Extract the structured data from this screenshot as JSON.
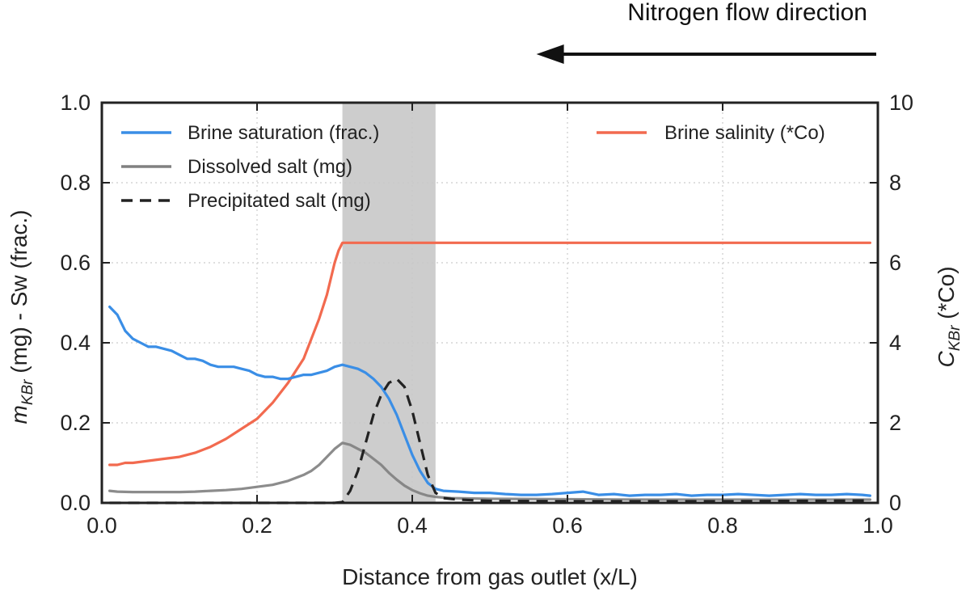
{
  "chart_data": {
    "type": "line",
    "xlabel": "Distance from gas outlet (x/L)",
    "ylabel_left": "m_KBr (mg) - Sw (frac.)",
    "ylabel_left_parts": {
      "symbol": "m",
      "subscript": "KBr",
      "rest": " (mg) - Sw (frac.)"
    },
    "ylabel_right": "C_KBr (*Co)",
    "ylabel_right_parts": {
      "symbol": "C",
      "subscript": "KBr",
      "rest": " (*Co)"
    },
    "xlim": [
      0.0,
      1.0
    ],
    "ylim_left": [
      0.0,
      1.0
    ],
    "ylim_right": [
      0,
      10
    ],
    "x_ticks": [
      "0.0",
      "0.2",
      "0.4",
      "0.6",
      "0.8",
      "1.0"
    ],
    "y_left_ticks": [
      "0.0",
      "0.2",
      "0.4",
      "0.6",
      "0.8",
      "1.0"
    ],
    "y_right_ticks": [
      "0",
      "2",
      "4",
      "6",
      "8",
      "10"
    ],
    "grid": true,
    "shaded_region": {
      "x_start": 0.31,
      "x_end": 0.43,
      "color": "#c8c8c8"
    },
    "annotation": {
      "text": "Nitrogen flow direction",
      "arrow_from_x": 1.0,
      "arrow_to_x": 0.56,
      "arrow_direction": "left"
    },
    "legend_left_position": "upper-left",
    "legend_right_position": "upper-right",
    "series": [
      {
        "name": "Brine saturation (frac.)",
        "axis": "left",
        "color": "#3a8ee6",
        "style": "solid",
        "x": [
          0.01,
          0.02,
          0.03,
          0.04,
          0.05,
          0.06,
          0.07,
          0.08,
          0.09,
          0.1,
          0.11,
          0.12,
          0.13,
          0.14,
          0.15,
          0.16,
          0.17,
          0.18,
          0.19,
          0.2,
          0.21,
          0.22,
          0.23,
          0.24,
          0.25,
          0.26,
          0.27,
          0.28,
          0.29,
          0.3,
          0.31,
          0.32,
          0.33,
          0.34,
          0.35,
          0.36,
          0.37,
          0.38,
          0.39,
          0.4,
          0.41,
          0.42,
          0.43,
          0.44,
          0.46,
          0.48,
          0.5,
          0.52,
          0.54,
          0.56,
          0.58,
          0.6,
          0.62,
          0.64,
          0.66,
          0.68,
          0.7,
          0.72,
          0.74,
          0.76,
          0.78,
          0.8,
          0.82,
          0.84,
          0.86,
          0.88,
          0.9,
          0.92,
          0.94,
          0.96,
          0.98,
          0.99
        ],
        "y": [
          0.49,
          0.47,
          0.43,
          0.41,
          0.4,
          0.39,
          0.39,
          0.385,
          0.38,
          0.37,
          0.36,
          0.36,
          0.355,
          0.345,
          0.34,
          0.34,
          0.34,
          0.335,
          0.33,
          0.32,
          0.315,
          0.315,
          0.31,
          0.31,
          0.315,
          0.32,
          0.32,
          0.325,
          0.33,
          0.34,
          0.345,
          0.34,
          0.335,
          0.325,
          0.31,
          0.29,
          0.26,
          0.22,
          0.17,
          0.12,
          0.08,
          0.05,
          0.035,
          0.03,
          0.028,
          0.025,
          0.025,
          0.022,
          0.02,
          0.02,
          0.022,
          0.025,
          0.028,
          0.02,
          0.022,
          0.018,
          0.02,
          0.02,
          0.022,
          0.018,
          0.02,
          0.02,
          0.022,
          0.02,
          0.018,
          0.02,
          0.022,
          0.02,
          0.02,
          0.022,
          0.02,
          0.018
        ]
      },
      {
        "name": "Dissolved salt (mg)",
        "axis": "left",
        "color": "#808080",
        "style": "solid",
        "x": [
          0.01,
          0.02,
          0.04,
          0.06,
          0.08,
          0.1,
          0.12,
          0.14,
          0.16,
          0.18,
          0.2,
          0.22,
          0.24,
          0.26,
          0.27,
          0.28,
          0.29,
          0.3,
          0.31,
          0.32,
          0.33,
          0.34,
          0.35,
          0.36,
          0.37,
          0.38,
          0.39,
          0.4,
          0.41,
          0.42,
          0.43,
          0.45,
          0.5,
          0.6,
          0.7,
          0.8,
          0.9,
          0.99
        ],
        "y": [
          0.03,
          0.028,
          0.027,
          0.027,
          0.027,
          0.027,
          0.028,
          0.03,
          0.032,
          0.035,
          0.04,
          0.045,
          0.055,
          0.07,
          0.08,
          0.095,
          0.115,
          0.135,
          0.15,
          0.145,
          0.135,
          0.125,
          0.11,
          0.095,
          0.075,
          0.058,
          0.043,
          0.032,
          0.024,
          0.018,
          0.015,
          0.012,
          0.01,
          0.009,
          0.008,
          0.008,
          0.008,
          0.008
        ]
      },
      {
        "name": "Precipitated salt (mg)",
        "axis": "left",
        "color": "#222222",
        "style": "dashed",
        "x": [
          0.01,
          0.1,
          0.2,
          0.3,
          0.31,
          0.32,
          0.33,
          0.34,
          0.35,
          0.36,
          0.37,
          0.38,
          0.39,
          0.4,
          0.41,
          0.42,
          0.43,
          0.44,
          0.46,
          0.5,
          0.6,
          0.7,
          0.8,
          0.9,
          0.99
        ],
        "y": [
          0.0,
          0.0,
          0.0,
          0.0,
          0.002,
          0.03,
          0.08,
          0.15,
          0.22,
          0.27,
          0.3,
          0.31,
          0.29,
          0.23,
          0.15,
          0.07,
          0.025,
          0.012,
          0.008,
          0.005,
          0.004,
          0.004,
          0.004,
          0.005,
          0.006
        ]
      },
      {
        "name": "Brine salinity (*Co)",
        "axis": "right",
        "color": "#f26a4f",
        "style": "solid",
        "x": [
          0.01,
          0.02,
          0.03,
          0.04,
          0.06,
          0.08,
          0.1,
          0.12,
          0.14,
          0.16,
          0.18,
          0.2,
          0.22,
          0.24,
          0.26,
          0.27,
          0.28,
          0.29,
          0.3,
          0.305,
          0.31,
          0.35,
          0.4,
          0.5,
          0.6,
          0.7,
          0.8,
          0.9,
          0.99
        ],
        "y": [
          0.95,
          0.95,
          1.0,
          1.0,
          1.05,
          1.1,
          1.15,
          1.25,
          1.4,
          1.6,
          1.85,
          2.1,
          2.5,
          3.0,
          3.6,
          4.1,
          4.6,
          5.2,
          6.0,
          6.3,
          6.5,
          6.5,
          6.5,
          6.5,
          6.5,
          6.5,
          6.5,
          6.5,
          6.5
        ]
      }
    ]
  }
}
